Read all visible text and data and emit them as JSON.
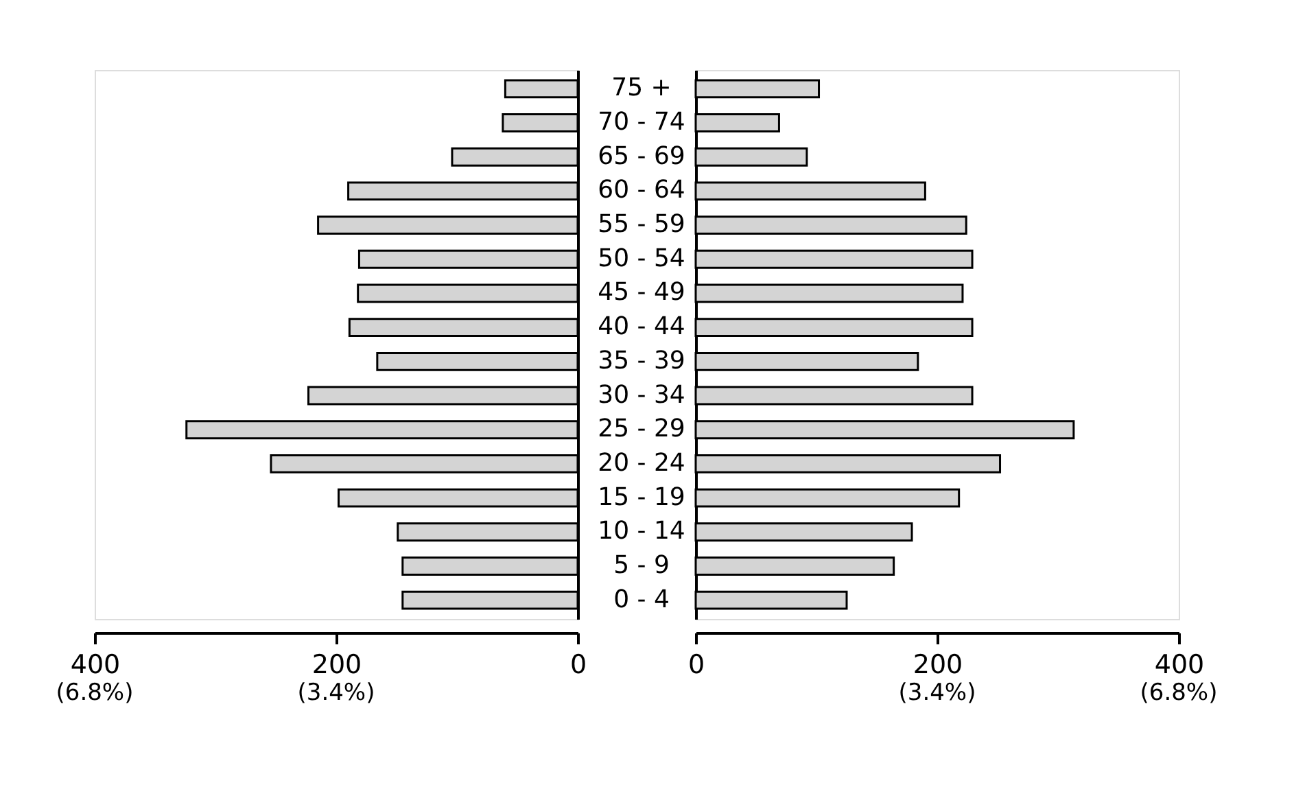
{
  "chart_data": [
    {
      "type": "bar",
      "orientation": "horizontal",
      "categories": [
        "75 +",
        "70 - 74",
        "65 - 69",
        "60 - 64",
        "55 - 59",
        "50 - 54",
        "45 - 49",
        "40 - 44",
        "35 - 39",
        "30 - 34",
        "25 - 29",
        "20 - 24",
        "15 - 19",
        "10 - 14",
        "5 - 9",
        "0 - 4"
      ],
      "values": [
        60,
        62,
        104,
        190,
        215,
        181,
        182,
        189,
        166,
        223,
        324,
        254,
        198,
        149,
        145,
        145
      ],
      "color": "#d4d4d4",
      "xlim": [
        400,
        0
      ],
      "xticks": [
        400,
        200,
        0
      ],
      "annotations": [
        "(6.8%)",
        "(3.4%)"
      ],
      "grid": false
    },
    {
      "type": "bar",
      "orientation": "horizontal",
      "categories": [
        null,
        null,
        null,
        null,
        null,
        null,
        null,
        null,
        null,
        null,
        null,
        null,
        null,
        null,
        null,
        null
      ],
      "values": [
        102,
        69,
        92,
        190,
        224,
        229,
        221,
        229,
        184,
        229,
        313,
        252,
        218,
        179,
        164,
        125
      ],
      "color": "#d4d4d4",
      "xlim": [
        0,
        400
      ],
      "xticks": [
        0,
        200,
        400
      ],
      "annotations": [
        "(3.4%)",
        "(6.8%)"
      ],
      "grid": false,
      "tick_labels": "x"
    }
  ]
}
